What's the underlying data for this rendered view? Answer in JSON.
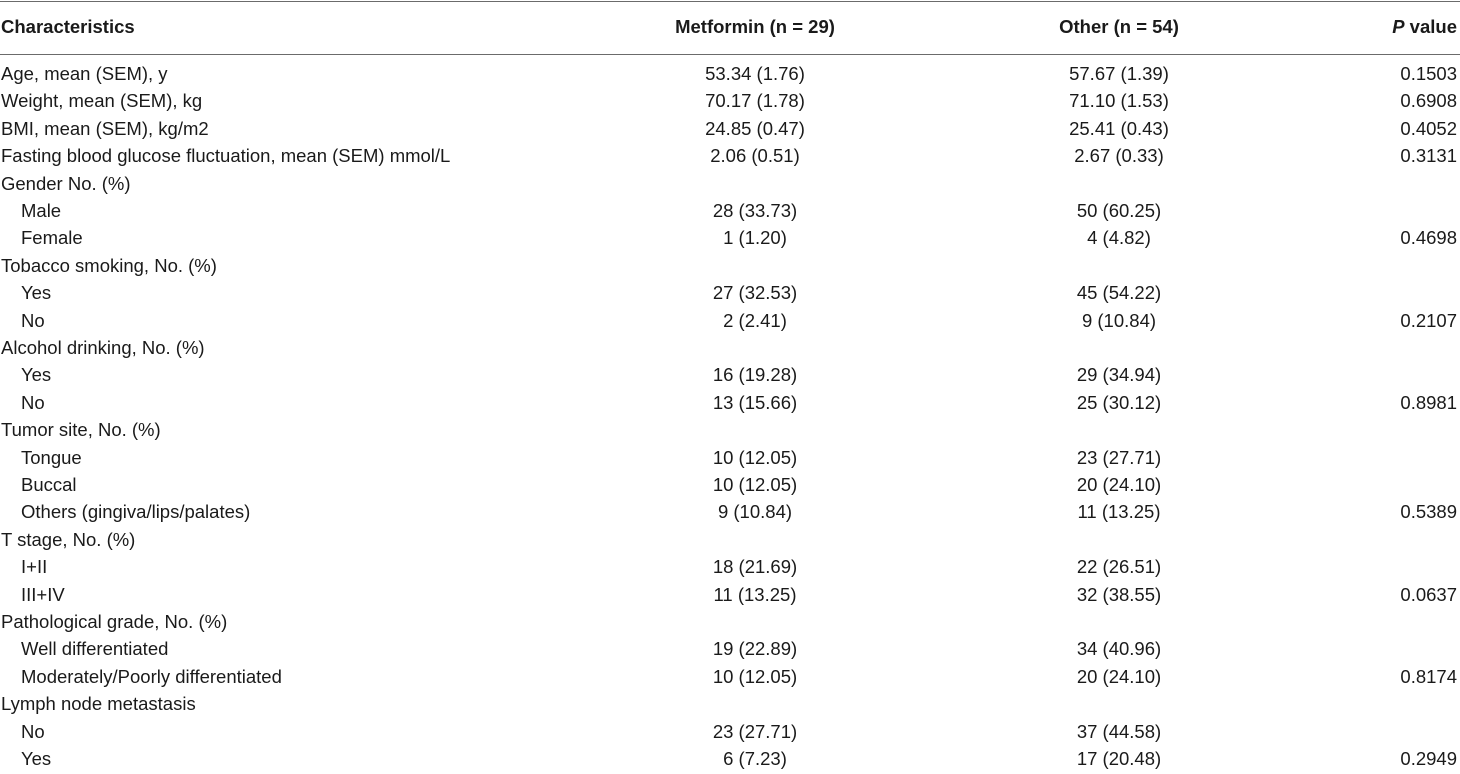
{
  "table": {
    "headers": {
      "characteristics": "Characteristics",
      "metformin": "Metformin (n = 29)",
      "other": "Other (n = 54)",
      "p_letter": "P",
      "p_rest": " value"
    },
    "rows": [
      {
        "label": "Age, mean (SEM), y",
        "metformin": "53.34 (1.76)",
        "other": "57.67 (1.39)",
        "p": "0.1503",
        "indent": false
      },
      {
        "label": "Weight, mean (SEM), kg",
        "metformin": "70.17 (1.78)",
        "other": "71.10 (1.53)",
        "p": "0.6908",
        "indent": false
      },
      {
        "label": "BMI, mean (SEM), kg/m2",
        "metformin": "24.85 (0.47)",
        "other": "25.41 (0.43)",
        "p": "0.4052",
        "indent": false
      },
      {
        "label": "Fasting blood glucose fluctuation, mean (SEM) mmol/L",
        "metformin": "2.06 (0.51)",
        "other": "2.67 (0.33)",
        "p": "0.3131",
        "indent": false
      },
      {
        "label": "Gender No. (%)",
        "metformin": "",
        "other": "",
        "p": "",
        "indent": false
      },
      {
        "label": "Male",
        "metformin": "28 (33.73)",
        "other": "50 (60.25)",
        "p": "",
        "indent": true
      },
      {
        "label": "Female",
        "metformin": "1 (1.20)",
        "other": "4 (4.82)",
        "p": "0.4698",
        "indent": true
      },
      {
        "label": "Tobacco smoking, No. (%)",
        "metformin": "",
        "other": "",
        "p": "",
        "indent": false
      },
      {
        "label": "Yes",
        "metformin": "27 (32.53)",
        "other": "45 (54.22)",
        "p": "",
        "indent": true
      },
      {
        "label": "No",
        "metformin": "2 (2.41)",
        "other": "9 (10.84)",
        "p": "0.2107",
        "indent": true
      },
      {
        "label": "Alcohol drinking, No. (%)",
        "metformin": "",
        "other": "",
        "p": "",
        "indent": false
      },
      {
        "label": "Yes",
        "metformin": "16 (19.28)",
        "other": "29 (34.94)",
        "p": "",
        "indent": true
      },
      {
        "label": "No",
        "metformin": "13 (15.66)",
        "other": "25 (30.12)",
        "p": "0.8981",
        "indent": true
      },
      {
        "label": "Tumor site, No. (%)",
        "metformin": "",
        "other": "",
        "p": "",
        "indent": false
      },
      {
        "label": "Tongue",
        "metformin": "10 (12.05)",
        "other": "23 (27.71)",
        "p": "",
        "indent": true
      },
      {
        "label": "Buccal",
        "metformin": "10 (12.05)",
        "other": "20 (24.10)",
        "p": "",
        "indent": true
      },
      {
        "label": "Others (gingiva/lips/palates)",
        "metformin": "9 (10.84)",
        "other": "11 (13.25)",
        "p": "0.5389",
        "indent": true
      },
      {
        "label": "T stage, No. (%)",
        "metformin": "",
        "other": "",
        "p": "",
        "indent": false
      },
      {
        "label": "I+II",
        "metformin": "18 (21.69)",
        "other": "22 (26.51)",
        "p": "",
        "indent": true
      },
      {
        "label": "III+IV",
        "metformin": "11 (13.25)",
        "other": "32 (38.55)",
        "p": "0.0637",
        "indent": true
      },
      {
        "label": "Pathological grade, No. (%)",
        "metformin": "",
        "other": "",
        "p": "",
        "indent": false
      },
      {
        "label": "Well differentiated",
        "metformin": "19 (22.89)",
        "other": "34 (40.96)",
        "p": "",
        "indent": true
      },
      {
        "label": "Moderately/Poorly differentiated",
        "metformin": "10 (12.05)",
        "other": "20 (24.10)",
        "p": "0.8174",
        "indent": true
      },
      {
        "label": "Lymph node metastasis",
        "metformin": "",
        "other": "",
        "p": "",
        "indent": false
      },
      {
        "label": "No",
        "metformin": "23 (27.71)",
        "other": "37 (44.58)",
        "p": "",
        "indent": true
      },
      {
        "label": "Yes",
        "metformin": "6 (7.23)",
        "other": "17 (20.48)",
        "p": "0.2949",
        "indent": true
      }
    ]
  }
}
